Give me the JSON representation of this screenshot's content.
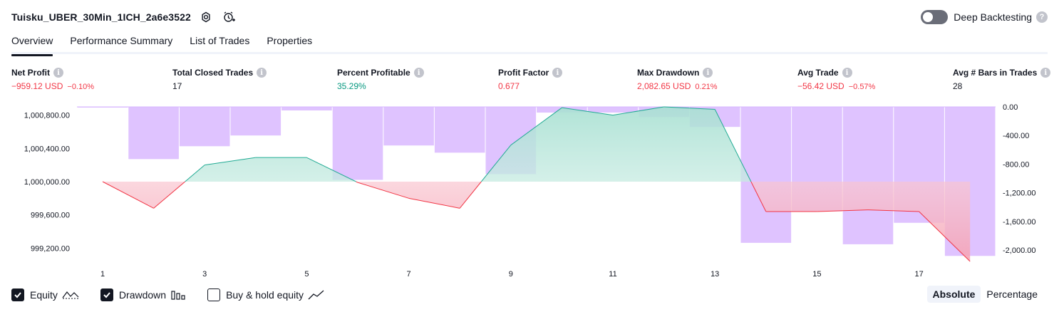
{
  "header": {
    "title": "Tuisku_UBER_30Min_1ICH_2a6e3522",
    "deep_backtesting_label": "Deep Backtesting",
    "deep_backtesting_enabled": false
  },
  "tabs": [
    {
      "label": "Overview",
      "active": true
    },
    {
      "label": "Performance Summary",
      "active": false
    },
    {
      "label": "List of Trades",
      "active": false
    },
    {
      "label": "Properties",
      "active": false
    }
  ],
  "stats": [
    {
      "label": "Net Profit",
      "value": "−959.12 USD",
      "pct": "−0.10%",
      "color": "red"
    },
    {
      "label": "Total Closed Trades",
      "value": "17",
      "pct": "",
      "color": "dark"
    },
    {
      "label": "Percent Profitable",
      "value": "35.29%",
      "pct": "",
      "color": "green"
    },
    {
      "label": "Profit Factor",
      "value": "0.677",
      "pct": "",
      "color": "red"
    },
    {
      "label": "Max Drawdown",
      "value": "2,082.65 USD",
      "pct": "0.21%",
      "color": "red"
    },
    {
      "label": "Avg Trade",
      "value": "−56.42 USD",
      "pct": "−0.57%",
      "color": "red"
    },
    {
      "label": "Avg # Bars in Trades",
      "value": "28",
      "pct": "",
      "color": "dark"
    }
  ],
  "chart_data": {
    "type": "line",
    "left_axis": {
      "ticks": [
        "1,000,800.00",
        "1,000,400.00",
        "1,000,000.00",
        "999,600.00",
        "999,200.00"
      ],
      "values": [
        1000800,
        1000400,
        1000000,
        999600,
        999200
      ],
      "range": [
        999100,
        1000900
      ],
      "baseline": 1000000
    },
    "right_axis": {
      "ticks": [
        "0.00",
        "-400.00",
        "-800.00",
        "-1,200.00",
        "-1,600.00",
        "-2,000.00"
      ],
      "values": [
        0,
        -400,
        -800,
        -1200,
        -1600,
        -2000
      ],
      "range": [
        -2090,
        0
      ]
    },
    "x_ticks": [
      1,
      3,
      5,
      7,
      9,
      11,
      13,
      15,
      17
    ],
    "equity": {
      "name": "Equity",
      "x": [
        1,
        2,
        3,
        4,
        5,
        6,
        7,
        8,
        9,
        10,
        11,
        12,
        13,
        14,
        15,
        16,
        17,
        18
      ],
      "values": [
        1000000,
        999680,
        1000200,
        1000290,
        1000290,
        999990,
        999800,
        999680,
        1000440,
        1000890,
        1000800,
        1000900,
        1000870,
        999640,
        999640,
        999660,
        999640,
        999040
      ]
    },
    "drawdown": {
      "name": "Drawdown",
      "x": [
        1,
        2,
        3,
        4,
        5,
        6,
        7,
        8,
        9,
        10,
        11,
        12,
        13,
        14,
        15,
        16,
        17,
        18
      ],
      "values": [
        -10,
        -730,
        -550,
        -400,
        -50,
        -1020,
        -540,
        -640,
        -940,
        -80,
        -80,
        -140,
        -280,
        -1900,
        -1460,
        -1920,
        -1620,
        -2082.65
      ]
    },
    "colors": {
      "equity_up": "#22ab94",
      "equity_down": "#f23645",
      "drawdown": "#d9b8ff",
      "up_fill": "#d6f1ea",
      "down_fill": "#fbd8dc"
    }
  },
  "legend": [
    {
      "label": "Equity",
      "checked": true,
      "icon": "equity-line-icon"
    },
    {
      "label": "Drawdown",
      "checked": true,
      "icon": "drawdown-bars-icon"
    },
    {
      "label": "Buy & hold equity",
      "checked": false,
      "icon": "buy-hold-line-icon"
    }
  ],
  "modes": [
    {
      "label": "Absolute",
      "active": true
    },
    {
      "label": "Percentage",
      "active": false
    }
  ]
}
